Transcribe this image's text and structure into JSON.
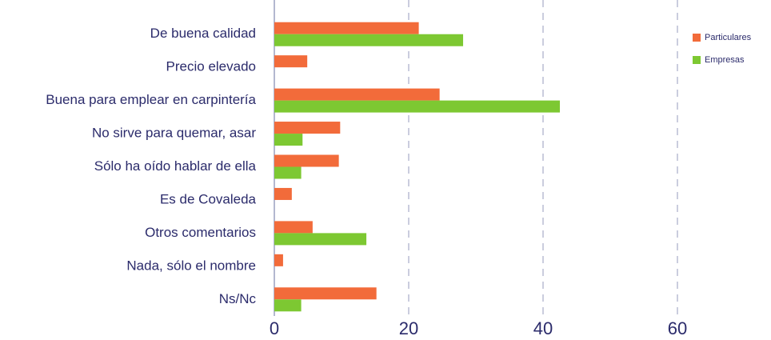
{
  "chart_data": {
    "type": "barh",
    "categories": [
      "De buena calidad",
      "Precio elevado",
      "Buena para emplear en carpintería",
      "No sirve para quemar, asar",
      "Sólo ha oído hablar de ella",
      "Es de Covaleda",
      "Otros comentarios",
      "Nada, sólo el nombre",
      "Ns/Nc"
    ],
    "series": [
      {
        "name": "Particulares",
        "color": "#f26b3a",
        "values": [
          21.5,
          4.9,
          24.6,
          9.8,
          9.6,
          2.6,
          5.7,
          1.3,
          15.2
        ]
      },
      {
        "name": "Empresas",
        "color": "#7dc832",
        "values": [
          28.1,
          null,
          42.5,
          4.2,
          4.0,
          null,
          13.7,
          null,
          4.0
        ]
      }
    ],
    "xlim": [
      0,
      73
    ],
    "xticks": [
      0,
      20,
      40,
      60
    ],
    "grid": true,
    "legend": "top-right"
  }
}
